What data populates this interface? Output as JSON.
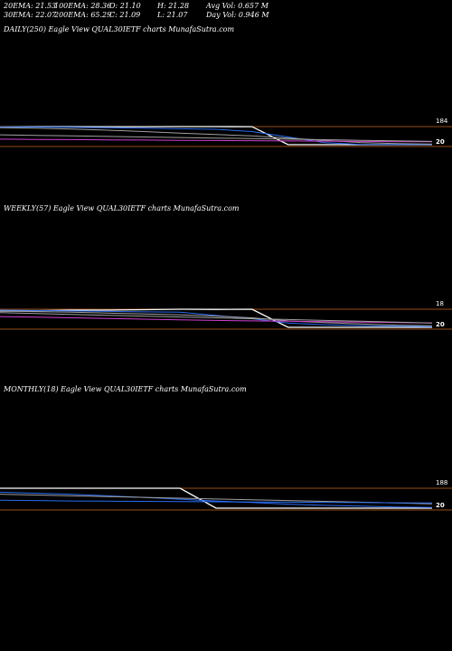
{
  "stats": {
    "ema20": "20EMA: 21.53",
    "ema100": "100EMA: 28.36",
    "open": "O: 21.10",
    "high": "H: 21.28",
    "avgvol": "Avg Vol: 0.657  M",
    "ema30": "30EMA: 22.07",
    "ema200": "200EMA: 65.29",
    "close": "C: 21.09",
    "low": "L: 21.07",
    "dayvol": "Day Vol: 0.946  M"
  },
  "colors": {
    "orange": "#c8641e",
    "magenta": "#d040d0",
    "blue": "#2a6cf0",
    "white": "#ffffff",
    "grey": "#a0a0a0"
  },
  "chart_data": [
    {
      "type": "line",
      "title": "DAILY(250) Eagle   View  QUAL30IETF charts MunafaSutra.com",
      "ticks": [
        "184",
        "20"
      ],
      "lines": {
        "price": [
          181,
          183,
          183.5,
          184,
          184.5,
          185,
          185,
          184,
          20,
          20,
          20,
          20,
          20
        ],
        "ema_fast": [
          182,
          181,
          179,
          175,
          170,
          165,
          160,
          140,
          90,
          40,
          22,
          21,
          21
        ],
        "ema_slow": [
          175,
          170,
          162,
          152,
          140,
          126,
          112,
          100,
          80,
          60,
          40,
          30,
          25
        ],
        "ma_pink": [
          70,
          68,
          66,
          64,
          62,
          60,
          58,
          56,
          54,
          52,
          50,
          48,
          46
        ],
        "ma_grey": [
          110,
          105,
          100,
          95,
          90,
          85,
          80,
          75,
          70,
          65,
          60,
          55,
          50
        ]
      }
    },
    {
      "type": "line",
      "title": "WEEKLY(57) Eagle   View  QUAL30IETF charts MunafaSutra.com",
      "ticks": [
        "18",
        "20"
      ],
      "lines": {
        "price": [
          95,
          97,
          100,
          100,
          102,
          104,
          103,
          104,
          20,
          20,
          20,
          20,
          20
        ],
        "ema_fast": [
          100,
          98,
          96,
          94,
          92,
          90,
          75,
          60,
          40,
          32,
          28,
          25,
          23
        ],
        "ema_slow": [
          95,
          93,
          90,
          86,
          82,
          78,
          72,
          64,
          50,
          42,
          36,
          30,
          27
        ],
        "ma_pink": [
          70,
          67,
          64,
          61,
          58,
          55,
          52,
          50,
          48,
          46,
          44,
          42,
          40
        ],
        "ma_grey": [
          88,
          84,
          80,
          76,
          72,
          68,
          64,
          60,
          56,
          52,
          48,
          44,
          40
        ]
      }
    },
    {
      "type": "line",
      "title": "MONTHLY(18) Eagle   View  QUAL30IETF charts MunafaSutra.com",
      "ticks": [
        "188",
        "20"
      ],
      "lines": {
        "price": [
          120,
          120,
          120,
          120,
          120,
          120,
          20,
          20,
          20,
          20,
          20,
          20,
          20
        ],
        "ema_fast": [
          100,
          95,
          90,
          82,
          74,
          65,
          56,
          48,
          40,
          34,
          30,
          26,
          23
        ],
        "ema_slow": [
          90,
          86,
          82,
          78,
          74,
          70,
          66,
          62,
          58,
          54,
          50,
          46,
          42
        ],
        "ma_blue": [
          60,
          58,
          56,
          55,
          54,
          53,
          52,
          51,
          50,
          49,
          48,
          47,
          46
        ]
      }
    }
  ]
}
